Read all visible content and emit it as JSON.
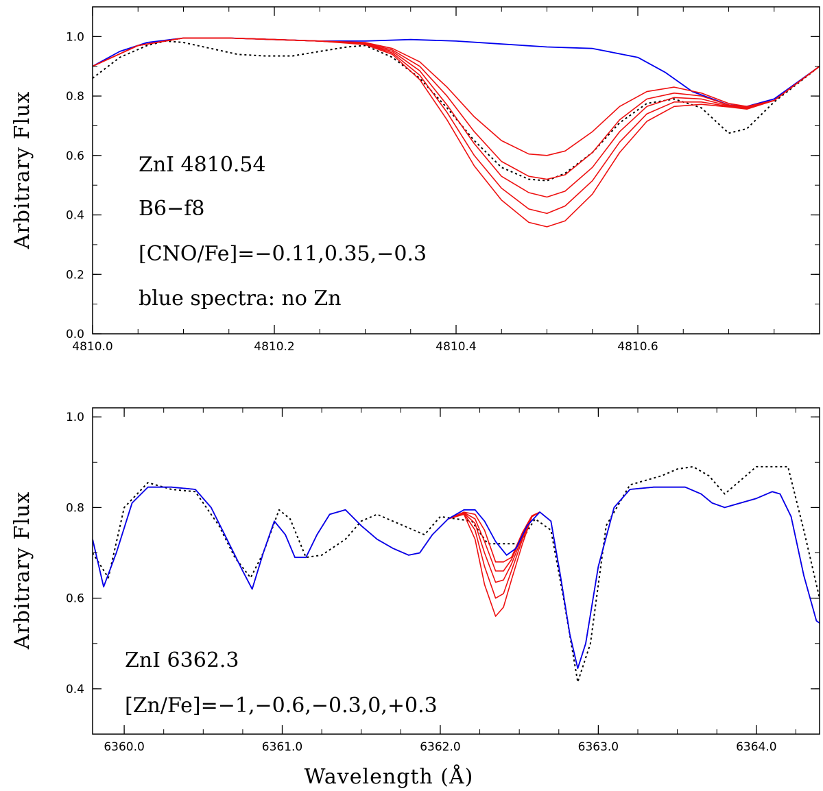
{
  "figure": {
    "xlabel": "Wavelength (Å)",
    "colors": {
      "observed": "#000000",
      "no_zn_model": "#0000ee",
      "zn_models": "#ee1111"
    }
  },
  "chart_data": [
    {
      "type": "line",
      "ylabel": "Arbitrary Flux",
      "xlabel": "",
      "xlim": [
        4810.0,
        4810.8
      ],
      "ylim": [
        0.0,
        1.1
      ],
      "xticks": [
        4810.0,
        4810.2,
        4810.4,
        4810.6
      ],
      "xtick_labels": [
        "4810.0",
        "4810.2",
        "4810.4",
        "4810.6"
      ],
      "yticks": [
        0.0,
        0.2,
        0.4,
        0.6,
        0.8,
        1.0
      ],
      "ytick_labels": [
        "0.0",
        "0.2",
        "0.4",
        "0.6",
        "0.8",
        "1.0"
      ],
      "annotations": [
        "ZnI 4810.54",
        "B6−f8",
        "[CNO/Fe]=−0.11,0.35,−0.3",
        "blue spectra: no Zn"
      ],
      "series": [
        {
          "style": "observed",
          "x": [
            4810.0,
            4810.03,
            4810.06,
            4810.08,
            4810.1,
            4810.13,
            4810.16,
            4810.19,
            4810.22,
            4810.25,
            4810.28,
            4810.3,
            4810.33,
            4810.36,
            4810.39,
            4810.42,
            4810.45,
            4810.48,
            4810.5,
            4810.52,
            4810.55,
            4810.58,
            4810.61,
            4810.64,
            4810.67,
            4810.7,
            4810.72,
            4810.75,
            4810.8
          ],
          "y": [
            0.86,
            0.93,
            0.97,
            0.985,
            0.98,
            0.96,
            0.94,
            0.935,
            0.935,
            0.95,
            0.965,
            0.97,
            0.93,
            0.86,
            0.76,
            0.65,
            0.56,
            0.52,
            0.515,
            0.54,
            0.61,
            0.71,
            0.775,
            0.79,
            0.76,
            0.675,
            0.69,
            0.78,
            0.9
          ]
        },
        {
          "style": "no_zn_model",
          "x": [
            4810.0,
            4810.03,
            4810.06,
            4810.1,
            4810.15,
            4810.2,
            4810.25,
            4810.3,
            4810.35,
            4810.4,
            4810.45,
            4810.5,
            4810.55,
            4810.6,
            4810.63,
            4810.66,
            4810.7,
            4810.72,
            4810.75,
            4810.8
          ],
          "y": [
            0.9,
            0.95,
            0.98,
            0.995,
            0.995,
            0.99,
            0.985,
            0.985,
            0.99,
            0.985,
            0.975,
            0.965,
            0.96,
            0.93,
            0.88,
            0.815,
            0.77,
            0.765,
            0.79,
            0.9
          ]
        },
        {
          "style": "zn_model",
          "name": "",
          "x": [
            4810.0,
            4810.05,
            4810.1,
            4810.15,
            4810.2,
            4810.25,
            4810.3,
            4810.33,
            4810.36,
            4810.39,
            4810.42,
            4810.45,
            4810.48,
            4810.5,
            4810.52,
            4810.55,
            4810.58,
            4810.61,
            4810.64,
            4810.67,
            4810.7,
            4810.72,
            4810.75,
            4810.8
          ],
          "y": [
            0.9,
            0.97,
            0.995,
            0.995,
            0.99,
            0.985,
            0.98,
            0.96,
            0.915,
            0.83,
            0.73,
            0.65,
            0.605,
            0.6,
            0.615,
            0.68,
            0.765,
            0.815,
            0.83,
            0.81,
            0.775,
            0.765,
            0.785,
            0.9
          ]
        },
        {
          "style": "zn_model",
          "x": [
            4810.0,
            4810.05,
            4810.1,
            4810.15,
            4810.2,
            4810.25,
            4810.3,
            4810.33,
            4810.36,
            4810.39,
            4810.42,
            4810.45,
            4810.48,
            4810.5,
            4810.52,
            4810.55,
            4810.58,
            4810.61,
            4810.64,
            4810.67,
            4810.7,
            4810.72,
            4810.75,
            4810.8
          ],
          "y": [
            0.9,
            0.97,
            0.995,
            0.995,
            0.99,
            0.985,
            0.978,
            0.955,
            0.9,
            0.8,
            0.68,
            0.58,
            0.53,
            0.52,
            0.535,
            0.61,
            0.72,
            0.79,
            0.81,
            0.8,
            0.77,
            0.762,
            0.785,
            0.9
          ]
        },
        {
          "style": "zn_model",
          "x": [
            4810.0,
            4810.05,
            4810.1,
            4810.15,
            4810.2,
            4810.25,
            4810.3,
            4810.33,
            4810.36,
            4810.39,
            4810.42,
            4810.45,
            4810.48,
            4810.5,
            4810.52,
            4810.55,
            4810.58,
            4810.61,
            4810.64,
            4810.67,
            4810.7,
            4810.72,
            4810.75,
            4810.8
          ],
          "y": [
            0.9,
            0.97,
            0.995,
            0.995,
            0.99,
            0.985,
            0.976,
            0.95,
            0.885,
            0.77,
            0.64,
            0.53,
            0.475,
            0.46,
            0.48,
            0.56,
            0.68,
            0.765,
            0.795,
            0.79,
            0.767,
            0.76,
            0.785,
            0.9
          ]
        },
        {
          "style": "zn_model",
          "x": [
            4810.0,
            4810.05,
            4810.1,
            4810.15,
            4810.2,
            4810.25,
            4810.3,
            4810.33,
            4810.36,
            4810.39,
            4810.42,
            4810.45,
            4810.48,
            4810.5,
            4810.52,
            4810.55,
            4810.58,
            4810.61,
            4810.64,
            4810.67,
            4810.7,
            4810.72,
            4810.75,
            4810.8
          ],
          "y": [
            0.9,
            0.97,
            0.995,
            0.995,
            0.99,
            0.985,
            0.975,
            0.945,
            0.87,
            0.745,
            0.6,
            0.49,
            0.42,
            0.405,
            0.43,
            0.515,
            0.645,
            0.74,
            0.78,
            0.78,
            0.765,
            0.758,
            0.785,
            0.9
          ]
        },
        {
          "style": "zn_model",
          "x": [
            4810.0,
            4810.05,
            4810.1,
            4810.15,
            4810.2,
            4810.25,
            4810.3,
            4810.33,
            4810.36,
            4810.39,
            4810.42,
            4810.45,
            4810.48,
            4810.5,
            4810.52,
            4810.55,
            4810.58,
            4810.61,
            4810.64,
            4810.67,
            4810.7,
            4810.72,
            4810.75,
            4810.8
          ],
          "y": [
            0.9,
            0.97,
            0.995,
            0.995,
            0.99,
            0.985,
            0.973,
            0.94,
            0.855,
            0.72,
            0.565,
            0.45,
            0.375,
            0.36,
            0.38,
            0.47,
            0.61,
            0.715,
            0.765,
            0.772,
            0.763,
            0.756,
            0.785,
            0.9
          ]
        }
      ]
    },
    {
      "type": "line",
      "ylabel": "Arbitrary Flux",
      "xlabel": "Wavelength (Å)",
      "xlim": [
        6359.8,
        6364.4
      ],
      "ylim": [
        0.3,
        1.02
      ],
      "xticks": [
        6360.0,
        6361.0,
        6362.0,
        6363.0,
        6364.0
      ],
      "xtick_labels": [
        "6360.0",
        "6361.0",
        "6362.0",
        "6363.0",
        "6364.0"
      ],
      "yticks": [
        0.4,
        0.6,
        0.8,
        1.0
      ],
      "ytick_labels": [
        "0.4",
        "0.6",
        "0.8",
        "1.0"
      ],
      "annotations": [
        "ZnI 6362.3",
        "[Zn/Fe]=−1,−0.6,−0.3,0,+0.3"
      ],
      "series": [
        {
          "style": "observed",
          "x": [
            6359.8,
            6359.9,
            6360.0,
            6360.15,
            6360.3,
            6360.45,
            6360.6,
            6360.7,
            6360.8,
            6360.88,
            6360.98,
            6361.05,
            6361.15,
            6361.25,
            6361.4,
            6361.5,
            6361.6,
            6361.7,
            6361.8,
            6361.9,
            6362.0,
            6362.1,
            6362.2,
            6362.3,
            6362.4,
            6362.5,
            6362.6,
            6362.7,
            6362.78,
            6362.87,
            6362.95,
            6363.05,
            6363.2,
            6363.3,
            6363.4,
            6363.5,
            6363.6,
            6363.7,
            6363.8,
            6363.9,
            6364.0,
            6364.1,
            6364.2,
            6364.3,
            6364.4
          ],
          "y": [
            0.7,
            0.645,
            0.8,
            0.855,
            0.84,
            0.835,
            0.76,
            0.69,
            0.645,
            0.7,
            0.795,
            0.775,
            0.69,
            0.695,
            0.73,
            0.77,
            0.785,
            0.77,
            0.755,
            0.74,
            0.78,
            0.775,
            0.77,
            0.72,
            0.72,
            0.72,
            0.775,
            0.75,
            0.6,
            0.415,
            0.5,
            0.76,
            0.85,
            0.86,
            0.87,
            0.885,
            0.89,
            0.87,
            0.83,
            0.86,
            0.89,
            0.89,
            0.89,
            0.75,
            0.6
          ]
        },
        {
          "style": "zn_model",
          "x": [
            6359.8,
            6359.87,
            6359.95,
            6360.05,
            6360.15,
            6360.3,
            6360.45,
            6360.55,
            6360.65,
            6360.75,
            6360.81,
            6360.88,
            6360.95,
            6361.02,
            6361.08,
            6361.15,
            6361.22,
            6361.3,
            6361.4,
            6361.5,
            6361.6,
            6361.7,
            6361.8,
            6361.87,
            6361.95,
            6362.05,
            6362.15,
            6362.22,
            6362.28,
            6362.35,
            6362.4,
            6362.45,
            6362.52,
            6362.58,
            6362.63,
            6362.7,
            6362.76,
            6362.82,
            6362.87,
            6362.92,
            6363.0,
            6363.1,
            6363.2,
            6363.35,
            6363.55,
            6363.65,
            6363.72,
            6363.8,
            6363.9,
            6364.0,
            6364.1,
            6364.15,
            6364.22,
            6364.3,
            6364.38,
            6364.4
          ],
          "y": [
            0.73,
            0.625,
            0.7,
            0.81,
            0.845,
            0.845,
            0.84,
            0.8,
            0.73,
            0.66,
            0.62,
            0.7,
            0.77,
            0.74,
            0.69,
            0.69,
            0.74,
            0.785,
            0.795,
            0.76,
            0.73,
            0.71,
            0.695,
            0.7,
            0.74,
            0.775,
            0.785,
            0.73,
            0.63,
            0.56,
            0.58,
            0.64,
            0.72,
            0.78,
            0.79,
            0.77,
            0.65,
            0.52,
            0.445,
            0.5,
            0.67,
            0.8,
            0.84,
            0.845,
            0.845,
            0.83,
            0.81,
            0.8,
            0.81,
            0.82,
            0.835,
            0.83,
            0.78,
            0.65,
            0.55,
            0.545
          ]
        },
        {
          "style": "zn_model",
          "x": [
            6362.05,
            6362.15,
            6362.22,
            6362.28,
            6362.35,
            6362.4,
            6362.45,
            6362.52,
            6362.58,
            6362.63
          ],
          "y": [
            0.775,
            0.787,
            0.75,
            0.67,
            0.6,
            0.61,
            0.66,
            0.73,
            0.78,
            0.79
          ]
        },
        {
          "style": "zn_model",
          "x": [
            6362.05,
            6362.15,
            6362.22,
            6362.28,
            6362.35,
            6362.4,
            6362.45,
            6362.52,
            6362.58,
            6362.63
          ],
          "y": [
            0.775,
            0.788,
            0.765,
            0.7,
            0.635,
            0.64,
            0.675,
            0.735,
            0.78,
            0.79
          ]
        },
        {
          "style": "zn_model",
          "x": [
            6362.05,
            6362.15,
            6362.22,
            6362.28,
            6362.35,
            6362.4,
            6362.45,
            6362.52,
            6362.58,
            6362.63
          ],
          "y": [
            0.775,
            0.789,
            0.775,
            0.725,
            0.66,
            0.66,
            0.685,
            0.74,
            0.78,
            0.79
          ]
        },
        {
          "style": "zn_model",
          "x": [
            6362.05,
            6362.15,
            6362.22,
            6362.28,
            6362.35,
            6362.4,
            6362.45,
            6362.52,
            6362.58,
            6362.63
          ],
          "y": [
            0.775,
            0.79,
            0.785,
            0.75,
            0.68,
            0.68,
            0.69,
            0.745,
            0.782,
            0.79
          ]
        },
        {
          "style": "no_zn_model",
          "x": [
            6359.8,
            6359.87,
            6359.95,
            6360.05,
            6360.15,
            6360.3,
            6360.45,
            6360.55,
            6360.65,
            6360.75,
            6360.81,
            6360.88,
            6360.95,
            6361.02,
            6361.08,
            6361.15,
            6361.22,
            6361.3,
            6361.4,
            6361.5,
            6361.6,
            6361.7,
            6361.8,
            6361.87,
            6361.95,
            6362.05,
            6362.15,
            6362.22,
            6362.28,
            6362.35,
            6362.42,
            6362.48,
            6362.55,
            6362.63,
            6362.7,
            6362.76,
            6362.82,
            6362.87,
            6362.92,
            6363.0,
            6363.1,
            6363.2,
            6363.35,
            6363.55,
            6363.65,
            6363.72,
            6363.8,
            6363.9,
            6364.0,
            6364.1,
            6364.15,
            6364.22,
            6364.3,
            6364.38,
            6364.4
          ],
          "y": [
            0.73,
            0.625,
            0.7,
            0.81,
            0.845,
            0.845,
            0.84,
            0.8,
            0.73,
            0.66,
            0.62,
            0.7,
            0.77,
            0.74,
            0.69,
            0.69,
            0.74,
            0.785,
            0.795,
            0.76,
            0.73,
            0.71,
            0.695,
            0.7,
            0.74,
            0.775,
            0.795,
            0.795,
            0.77,
            0.725,
            0.695,
            0.71,
            0.76,
            0.79,
            0.77,
            0.65,
            0.52,
            0.445,
            0.5,
            0.67,
            0.8,
            0.84,
            0.845,
            0.845,
            0.83,
            0.81,
            0.8,
            0.81,
            0.82,
            0.835,
            0.83,
            0.78,
            0.65,
            0.55,
            0.545
          ]
        }
      ]
    }
  ]
}
